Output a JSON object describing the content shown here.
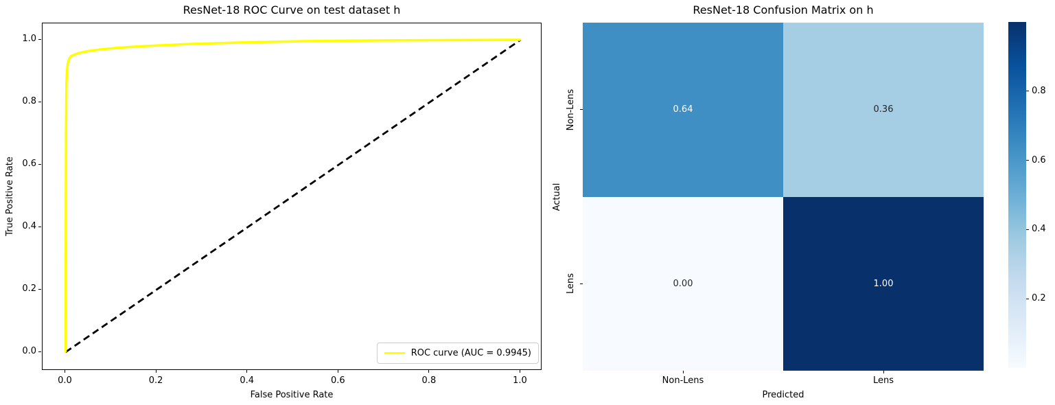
{
  "figure": {
    "background": "#ffffff"
  },
  "chart_data": [
    {
      "type": "line",
      "title": "ResNet-18 ROC Curve on test dataset h",
      "xlabel": "False Positive Rate",
      "ylabel": "True Positive Rate",
      "xlim": [
        0,
        1
      ],
      "ylim": [
        0,
        1
      ],
      "xticks": [
        "0.0",
        "0.2",
        "0.4",
        "0.6",
        "0.8",
        "1.0"
      ],
      "yticks": [
        "0.0",
        "0.2",
        "0.4",
        "0.6",
        "0.8",
        "1.0"
      ],
      "grid": false,
      "legend_position": "lower right",
      "auc": 0.9945,
      "series": [
        {
          "name": "ROC curve (AUC = 0.9945)",
          "color": "#ffff00",
          "style": "solid",
          "points": [
            [
              0.0,
              0.0
            ],
            [
              0.001,
              0.7
            ],
            [
              0.002,
              0.86
            ],
            [
              0.003,
              0.9
            ],
            [
              0.005,
              0.925
            ],
            [
              0.008,
              0.94
            ],
            [
              0.012,
              0.948
            ],
            [
              0.02,
              0.953
            ],
            [
              0.03,
              0.958
            ],
            [
              0.05,
              0.964
            ],
            [
              0.08,
              0.97
            ],
            [
              0.12,
              0.975
            ],
            [
              0.16,
              0.979
            ],
            [
              0.2,
              0.982
            ],
            [
              0.25,
              0.985
            ],
            [
              0.3,
              0.988
            ],
            [
              0.35,
              0.99
            ],
            [
              0.4,
              0.992
            ],
            [
              0.5,
              0.995
            ],
            [
              0.6,
              0.997
            ],
            [
              0.7,
              0.998
            ],
            [
              0.8,
              0.999
            ],
            [
              0.9,
              0.9995
            ],
            [
              1.0,
              1.0
            ]
          ]
        },
        {
          "name": "chance-diagonal",
          "color": "#000000",
          "style": "dashed",
          "points": [
            [
              0.0,
              0.0
            ],
            [
              1.0,
              1.0
            ]
          ]
        }
      ]
    },
    {
      "type": "heatmap",
      "title": "ResNet-18 Confusion Matrix on h",
      "xlabel": "Predicted",
      "ylabel": "Actual",
      "xticklabels": [
        "Non-Lens",
        "Lens"
      ],
      "yticklabels": [
        "Non-Lens",
        "Lens"
      ],
      "rows": [
        {
          "actual": "Non-Lens",
          "values": [
            0.64,
            0.36
          ]
        },
        {
          "actual": "Lens",
          "values": [
            0.0,
            1.0
          ]
        }
      ],
      "cell_labels": [
        [
          "0.64",
          "0.36"
        ],
        [
          "0.00",
          "1.00"
        ]
      ],
      "cell_colors": [
        [
          "#3f8ec4",
          "#a5cde3"
        ],
        [
          "#f7fbff",
          "#08306b"
        ]
      ],
      "cell_text_colors": [
        [
          "#ffffff",
          "#262626"
        ],
        [
          "#262626",
          "#ffffff"
        ]
      ],
      "colorbar": {
        "ticks": [
          {
            "label": "0.8",
            "value": 0.8
          },
          {
            "label": "0.6",
            "value": 0.6
          },
          {
            "label": "0.4",
            "value": 0.4
          },
          {
            "label": "0.2",
            "value": 0.2
          }
        ],
        "colormap_name": "Blues",
        "colormap_stops": [
          [
            0.0,
            "#f7fbff"
          ],
          [
            0.125,
            "#deebf7"
          ],
          [
            0.25,
            "#c6dbef"
          ],
          [
            0.375,
            "#9ecae1"
          ],
          [
            0.5,
            "#6baed6"
          ],
          [
            0.625,
            "#4292c6"
          ],
          [
            0.75,
            "#2171b5"
          ],
          [
            0.875,
            "#08519c"
          ],
          [
            1.0,
            "#08306b"
          ]
        ]
      }
    }
  ]
}
